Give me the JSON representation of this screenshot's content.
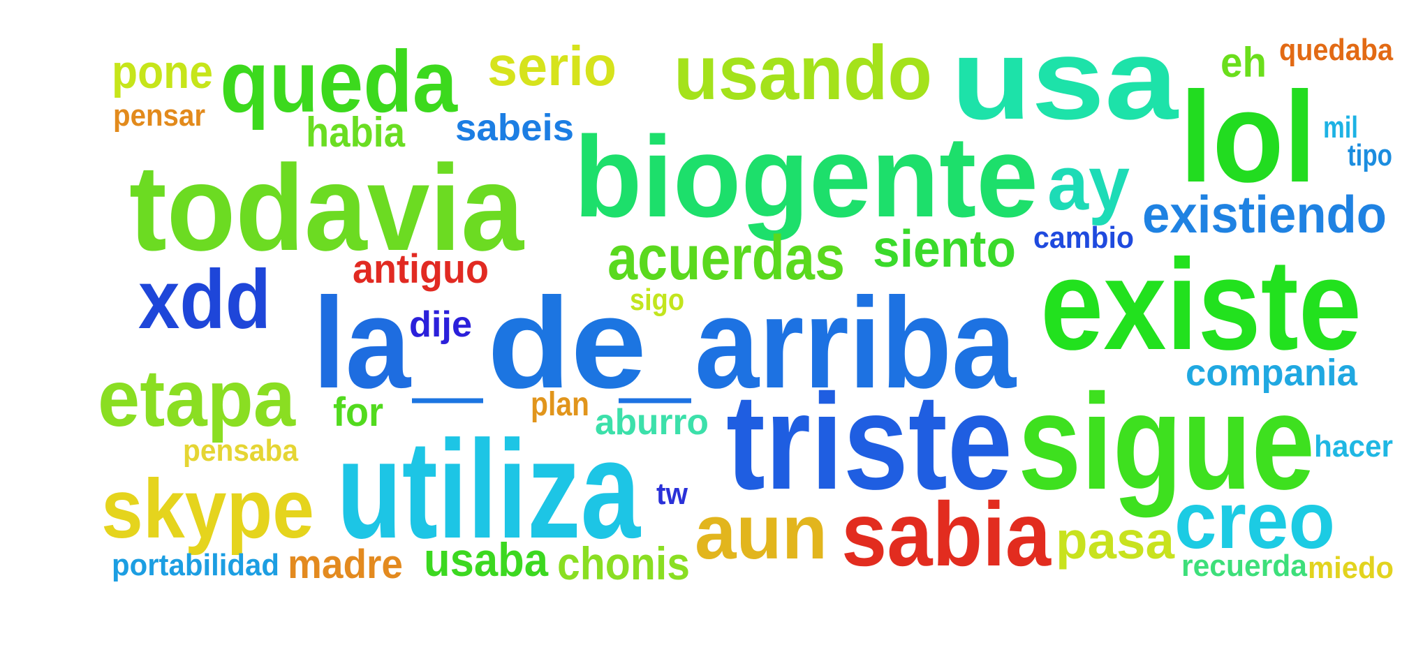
{
  "words": [
    {
      "text": "pone",
      "color": "#c6e51a"
    },
    {
      "text": "queda",
      "color": "#3cd91d"
    },
    {
      "text": "serio",
      "color": "#d6e31c"
    },
    {
      "text": "usando",
      "color": "#a4e21b"
    },
    {
      "text": "usa",
      "color": "#1de2a9"
    },
    {
      "text": "eh",
      "color": "#6ade1b"
    },
    {
      "text": "quedaba",
      "color": "#e26a14"
    },
    {
      "text": "pensar",
      "color": "#e28a1c"
    },
    {
      "text": "habia",
      "color": "#6add22"
    },
    {
      "text": "sabeis",
      "color": "#1c7ee3"
    },
    {
      "text": "biogente",
      "color": "#1ddf6b"
    },
    {
      "text": "lol",
      "color": "#22dc20"
    },
    {
      "text": "mil",
      "color": "#1db2e4"
    },
    {
      "text": "tipo",
      "color": "#1c8ddf"
    },
    {
      "text": "todavia",
      "color": "#6cdb22"
    },
    {
      "text": "ay",
      "color": "#1ddbb6"
    },
    {
      "text": "existiendo",
      "color": "#1f82e2"
    },
    {
      "text": "cambio",
      "color": "#1f4ade"
    },
    {
      "text": "acuerdas",
      "color": "#5ad91e"
    },
    {
      "text": "siento",
      "color": "#3ada2b"
    },
    {
      "text": "xdd",
      "color": "#1e46d9"
    },
    {
      "text": "antiguo",
      "color": "#e12a22"
    },
    {
      "text": "sigo",
      "color": "#c2e51d"
    },
    {
      "text": "existe",
      "color": "#22e11e"
    },
    {
      "text": "la",
      "color": "#1e6de0"
    },
    {
      "text": "dije",
      "color": "#2b20da"
    },
    {
      "text": "de",
      "color": "#1c75e1"
    },
    {
      "text": "arriba",
      "color": "#1d72e2"
    },
    {
      "text": "etapa",
      "color": "#8ade22"
    },
    {
      "text": "for",
      "color": "#52da1e"
    },
    {
      "text": "plan",
      "color": "#e1951c"
    },
    {
      "text": "aburro",
      "color": "#3ce0aa"
    },
    {
      "text": "compania",
      "color": "#20a8e1"
    },
    {
      "text": "triste",
      "color": "#1f5ee1"
    },
    {
      "text": "sigue",
      "color": "#3ee01f"
    },
    {
      "text": "pensaba",
      "color": "#e5d533"
    },
    {
      "text": "hacer",
      "color": "#1fb7e3"
    },
    {
      "text": "skype",
      "color": "#e5d41d"
    },
    {
      "text": "utiliza",
      "color": "#1dc5e5"
    },
    {
      "text": "tw",
      "color": "#2a31d8"
    },
    {
      "text": "aun",
      "color": "#e2b51d"
    },
    {
      "text": "sabia",
      "color": "#e22c1f"
    },
    {
      "text": "pasa",
      "color": "#c8e21e"
    },
    {
      "text": "creo",
      "color": "#1ccbe3"
    },
    {
      "text": "portabilidad",
      "color": "#1c9ee2"
    },
    {
      "text": "madre",
      "color": "#e38a1f"
    },
    {
      "text": "usaba",
      "color": "#3cd820"
    },
    {
      "text": "chonis",
      "color": "#8ade22"
    },
    {
      "text": "recuerda",
      "color": "#3ddf7a"
    },
    {
      "text": "miedo",
      "color": "#e2d31e"
    }
  ],
  "underscores": [
    {
      "color": "#1c75e1"
    },
    {
      "color": "#1d72e2"
    }
  ]
}
